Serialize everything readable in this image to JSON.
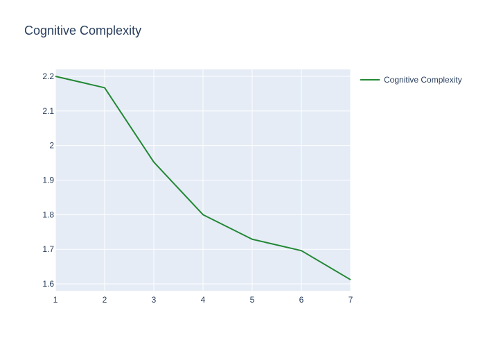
{
  "chart_data": {
    "type": "line",
    "title": "Cognitive Complexity",
    "xlabel": "",
    "ylabel": "",
    "x": [
      1,
      2,
      3,
      4,
      5,
      6,
      7
    ],
    "series": [
      {
        "name": "Cognitive Complexity",
        "values": [
          2.2,
          2.167,
          1.952,
          1.8,
          1.729,
          1.696,
          1.612
        ],
        "color": "#228833"
      }
    ],
    "xlim": [
      1,
      7
    ],
    "ylim": [
      1.58,
      2.22
    ],
    "x_ticks": [
      1,
      2,
      3,
      4,
      5,
      6,
      7
    ],
    "y_ticks": [
      1.6,
      1.7,
      1.8,
      1.9,
      2.0,
      2.1,
      2.2
    ],
    "y_tick_labels": [
      "1.6",
      "1.7",
      "1.8",
      "1.9",
      "2",
      "2.1",
      "2.2"
    ],
    "grid": true,
    "legend_position": "top-right",
    "plot_background": "#e5ecf6",
    "grid_color": "#ffffff"
  }
}
